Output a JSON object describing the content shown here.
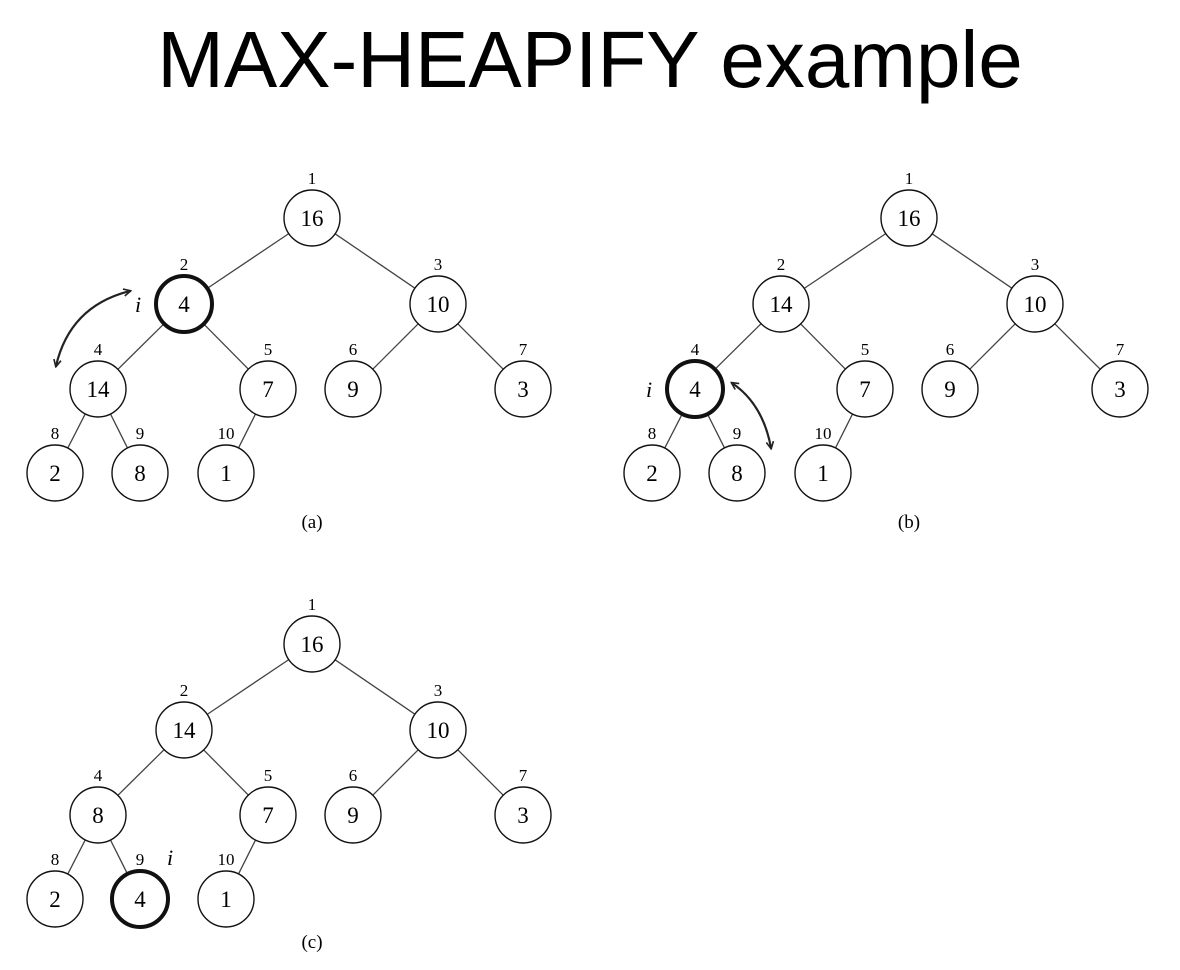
{
  "title": "MAX-HEAPIFY example",
  "panels": [
    {
      "caption": "(a)",
      "nodes": [
        {
          "index": "1",
          "value": "16"
        },
        {
          "index": "2",
          "value": "4",
          "current": true
        },
        {
          "index": "3",
          "value": "10"
        },
        {
          "index": "4",
          "value": "14"
        },
        {
          "index": "5",
          "value": "7"
        },
        {
          "index": "6",
          "value": "9"
        },
        {
          "index": "7",
          "value": "3"
        },
        {
          "index": "8",
          "value": "2"
        },
        {
          "index": "9",
          "value": "8"
        },
        {
          "index": "10",
          "value": "1"
        }
      ],
      "i_marker": "i",
      "swap": [
        "2",
        "4"
      ]
    },
    {
      "caption": "(b)",
      "nodes": [
        {
          "index": "1",
          "value": "16"
        },
        {
          "index": "2",
          "value": "14"
        },
        {
          "index": "3",
          "value": "10"
        },
        {
          "index": "4",
          "value": "4",
          "current": true
        },
        {
          "index": "5",
          "value": "7"
        },
        {
          "index": "6",
          "value": "9"
        },
        {
          "index": "7",
          "value": "3"
        },
        {
          "index": "8",
          "value": "2"
        },
        {
          "index": "9",
          "value": "8"
        },
        {
          "index": "10",
          "value": "1"
        }
      ],
      "i_marker": "i",
      "swap": [
        "4",
        "9"
      ]
    },
    {
      "caption": "(c)",
      "nodes": [
        {
          "index": "1",
          "value": "16"
        },
        {
          "index": "2",
          "value": "14"
        },
        {
          "index": "3",
          "value": "10"
        },
        {
          "index": "4",
          "value": "8"
        },
        {
          "index": "5",
          "value": "7"
        },
        {
          "index": "6",
          "value": "9"
        },
        {
          "index": "7",
          "value": "3"
        },
        {
          "index": "8",
          "value": "2"
        },
        {
          "index": "9",
          "value": "4",
          "current": true
        },
        {
          "index": "10",
          "value": "1"
        }
      ],
      "i_marker": "i",
      "swap": []
    }
  ]
}
